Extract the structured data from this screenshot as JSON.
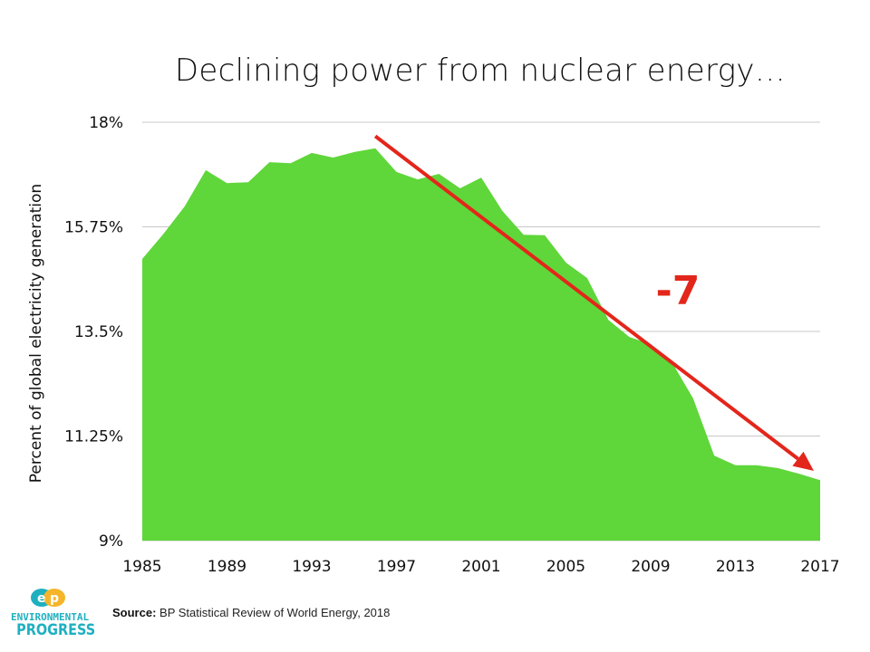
{
  "chart_data": {
    "type": "area",
    "title": "Declining power from nuclear energy…",
    "xlabel": "",
    "ylabel": "Percent of global electricity generation",
    "x": [
      1985,
      1986,
      1987,
      1988,
      1989,
      1990,
      1991,
      1992,
      1993,
      1994,
      1995,
      1996,
      1997,
      1998,
      1999,
      2000,
      2001,
      2002,
      2003,
      2004,
      2005,
      2006,
      2007,
      2008,
      2009,
      2010,
      2011,
      2012,
      2013,
      2014,
      2015,
      2016,
      2017
    ],
    "values": [
      15.06,
      15.6,
      16.19,
      16.97,
      16.69,
      16.71,
      17.14,
      17.12,
      17.34,
      17.24,
      17.36,
      17.44,
      16.93,
      16.77,
      16.89,
      16.58,
      16.81,
      16.09,
      15.58,
      15.57,
      14.98,
      14.65,
      13.75,
      13.38,
      13.23,
      12.84,
      12.06,
      10.83,
      10.62,
      10.62,
      10.56,
      10.44,
      10.3
    ],
    "xlim": [
      1985,
      2017
    ],
    "ylim": [
      9,
      18
    ],
    "x_ticks": [
      "1985",
      "1989",
      "1993",
      "1997",
      "2001",
      "2005",
      "2009",
      "2013",
      "2017"
    ],
    "y_ticks": [
      "18%",
      "15.75%",
      "13.5%",
      "11.25%",
      "9%"
    ],
    "grid": "horizontal",
    "colors": {
      "area": "#5fd63a",
      "arrow": "#e3261b",
      "grid": "#c8c8c8"
    },
    "annotation": {
      "label": "-7",
      "arrow_from": [
        1996,
        17.7
      ],
      "arrow_to": [
        2016.7,
        10.5
      ]
    }
  },
  "logo": {
    "line1": "ENVIRONMENTAL",
    "line2": "PROGRESS",
    "mark": "ep"
  },
  "source": {
    "label": "Source:",
    "text": " BP Statistical Review of World Energy, 2018"
  }
}
